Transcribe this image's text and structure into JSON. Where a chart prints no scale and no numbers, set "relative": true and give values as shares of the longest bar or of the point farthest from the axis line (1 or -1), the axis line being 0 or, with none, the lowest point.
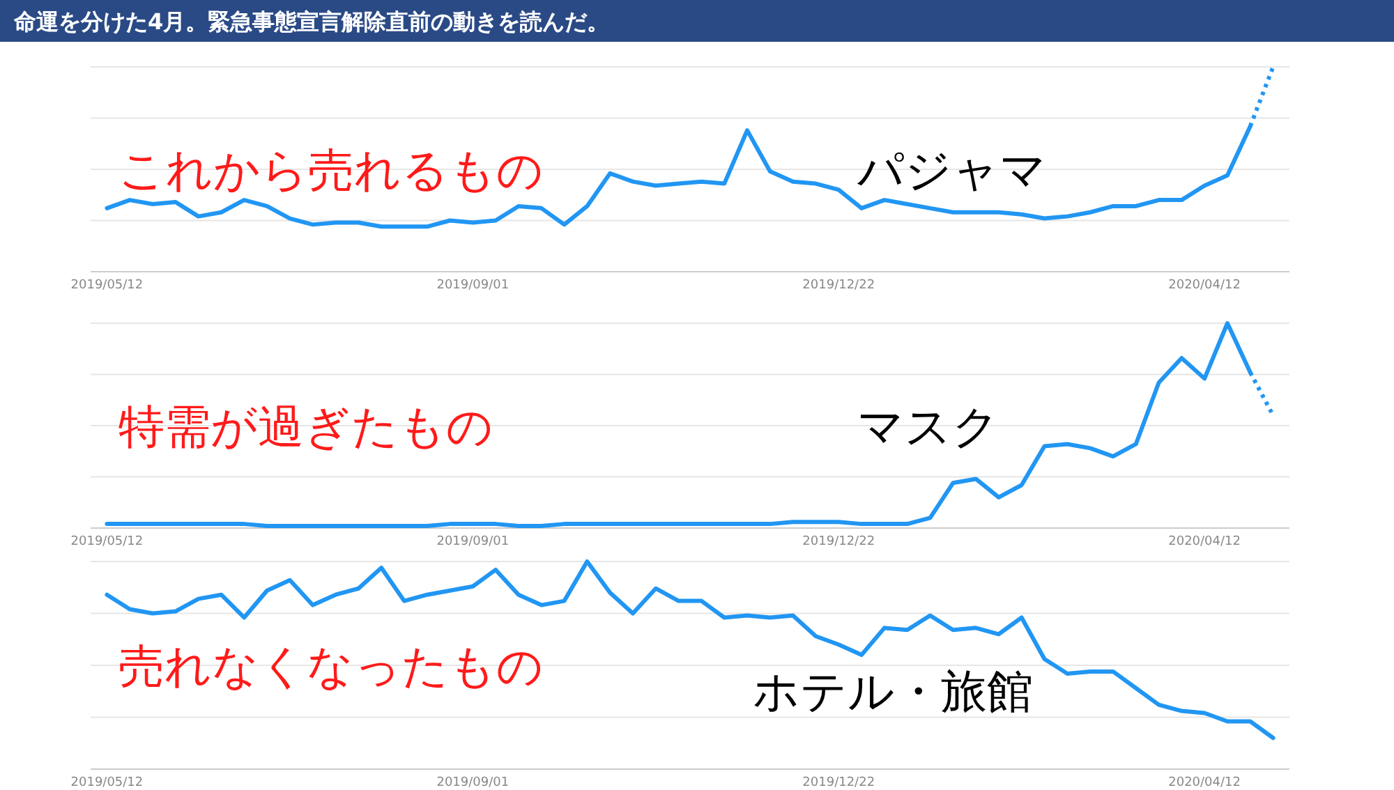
{
  "chart_data": [
    {
      "type": "line",
      "title": "命運を分けた4月。緊急事態宣言解除直前の動きを読んだ。",
      "relative": true,
      "grid": "y",
      "tick_labels": "x",
      "annotations": [
        "これから売れるもの",
        "パジャマ"
      ],
      "x": [
        "2019-05-12",
        "2019-05-19",
        "2019-05-26",
        "2019-06-02",
        "2019-06-09",
        "2019-06-16",
        "2019-06-23",
        "2019-06-30",
        "2019-07-07",
        "2019-07-14",
        "2019-07-21",
        "2019-07-28",
        "2019-08-04",
        "2019-08-11",
        "2019-08-18",
        "2019-08-25",
        "2019-09-01",
        "2019-09-08",
        "2019-09-15",
        "2019-09-22",
        "2019-09-29",
        "2019-10-06",
        "2019-10-13",
        "2019-10-20",
        "2019-10-27",
        "2019-11-03",
        "2019-11-10",
        "2019-11-17",
        "2019-11-24",
        "2019-12-01",
        "2019-12-08",
        "2019-12-15",
        "2019-12-22",
        "2019-12-29",
        "2020-01-05",
        "2020-01-12",
        "2020-01-19",
        "2020-01-26",
        "2020-02-02",
        "2020-02-09",
        "2020-02-16",
        "2020-02-23",
        "2020-03-01",
        "2020-03-08",
        "2020-03-15",
        "2020-03-22",
        "2020-03-29",
        "2020-04-05",
        "2020-04-12",
        "2020-04-19",
        "2020-04-26",
        "2020-05-03"
      ],
      "xlim": [
        "2019-05-07",
        "2020-05-08"
      ],
      "xticks": [
        {
          "value": "2019-05-12",
          "label": "2019/05/12"
        },
        {
          "value": "2019-09-01",
          "label": "2019/09/01"
        },
        {
          "value": "2019-12-22",
          "label": "2019/12/22"
        },
        {
          "value": "2020-04-12",
          "label": "2020/04/12"
        }
      ],
      "series": [
        {
          "color": "#2196f3",
          "line_style": "solid",
          "values": [
            0.31,
            0.35,
            0.33,
            0.34,
            0.27,
            0.29,
            0.35,
            0.32,
            0.26,
            0.23,
            0.24,
            0.24,
            0.22,
            0.22,
            0.22,
            0.25,
            0.24,
            0.25,
            0.32,
            0.31,
            0.23,
            0.32,
            0.48,
            0.44,
            0.42,
            0.43,
            0.44,
            0.43,
            0.69,
            0.49,
            0.44,
            0.43,
            0.4,
            0.31,
            0.35,
            0.33,
            0.31,
            0.29,
            0.29,
            0.29,
            0.28,
            0.26,
            0.27,
            0.29,
            0.32,
            0.32,
            0.35,
            0.35,
            0.42,
            0.47,
            0.71,
            null
          ]
        },
        {
          "color": "#2196f3",
          "line_style": "dotted",
          "values": [
            null,
            null,
            null,
            null,
            null,
            null,
            null,
            null,
            null,
            null,
            null,
            null,
            null,
            null,
            null,
            null,
            null,
            null,
            null,
            null,
            null,
            null,
            null,
            null,
            null,
            null,
            null,
            null,
            null,
            null,
            null,
            null,
            null,
            null,
            null,
            null,
            null,
            null,
            null,
            null,
            null,
            null,
            null,
            null,
            null,
            null,
            null,
            null,
            null,
            null,
            0.71,
            1.0
          ]
        }
      ]
    },
    {
      "type": "line",
      "relative": true,
      "grid": "y",
      "tick_labels": "x",
      "annotations": [
        "特需が過ぎたもの",
        "マスク"
      ],
      "x": [
        "2019-05-12",
        "2019-05-19",
        "2019-05-26",
        "2019-06-02",
        "2019-06-09",
        "2019-06-16",
        "2019-06-23",
        "2019-06-30",
        "2019-07-07",
        "2019-07-14",
        "2019-07-21",
        "2019-07-28",
        "2019-08-04",
        "2019-08-11",
        "2019-08-18",
        "2019-08-25",
        "2019-09-01",
        "2019-09-08",
        "2019-09-15",
        "2019-09-22",
        "2019-09-29",
        "2019-10-06",
        "2019-10-13",
        "2019-10-20",
        "2019-10-27",
        "2019-11-03",
        "2019-11-10",
        "2019-11-17",
        "2019-11-24",
        "2019-12-01",
        "2019-12-08",
        "2019-12-15",
        "2019-12-22",
        "2019-12-29",
        "2020-01-05",
        "2020-01-12",
        "2020-01-19",
        "2020-01-26",
        "2020-02-02",
        "2020-02-09",
        "2020-02-16",
        "2020-02-23",
        "2020-03-01",
        "2020-03-08",
        "2020-03-15",
        "2020-03-22",
        "2020-03-29",
        "2020-04-05",
        "2020-04-12",
        "2020-04-19",
        "2020-04-26",
        "2020-05-03"
      ],
      "xlim": [
        "2019-05-07",
        "2020-05-08"
      ],
      "xticks": [
        {
          "value": "2019-05-12",
          "label": "2019/05/12"
        },
        {
          "value": "2019-09-01",
          "label": "2019/09/01"
        },
        {
          "value": "2019-12-22",
          "label": "2019/12/22"
        },
        {
          "value": "2020-04-12",
          "label": "2020/04/12"
        }
      ],
      "series": [
        {
          "color": "#2196f3",
          "line_style": "solid",
          "values": [
            0.02,
            0.02,
            0.02,
            0.02,
            0.02,
            0.02,
            0.02,
            0.01,
            0.01,
            0.01,
            0.01,
            0.01,
            0.01,
            0.01,
            0.01,
            0.02,
            0.02,
            0.02,
            0.01,
            0.01,
            0.02,
            0.02,
            0.02,
            0.02,
            0.02,
            0.02,
            0.02,
            0.02,
            0.02,
            0.02,
            0.03,
            0.03,
            0.03,
            0.02,
            0.02,
            0.02,
            0.05,
            0.22,
            0.24,
            0.15,
            0.21,
            0.4,
            0.41,
            0.39,
            0.35,
            0.41,
            0.71,
            0.83,
            0.73,
            1.0,
            0.76,
            null
          ]
        },
        {
          "color": "#2196f3",
          "line_style": "dotted",
          "values": [
            null,
            null,
            null,
            null,
            null,
            null,
            null,
            null,
            null,
            null,
            null,
            null,
            null,
            null,
            null,
            null,
            null,
            null,
            null,
            null,
            null,
            null,
            null,
            null,
            null,
            null,
            null,
            null,
            null,
            null,
            null,
            null,
            null,
            null,
            null,
            null,
            null,
            null,
            null,
            null,
            null,
            null,
            null,
            null,
            null,
            null,
            null,
            null,
            null,
            null,
            0.76,
            0.55
          ]
        }
      ]
    },
    {
      "type": "line",
      "relative": true,
      "grid": "y",
      "tick_labels": "x",
      "annotations": [
        "売れなくなったもの",
        "ホテル・旅館"
      ],
      "x": [
        "2019-05-12",
        "2019-05-19",
        "2019-05-26",
        "2019-06-02",
        "2019-06-09",
        "2019-06-16",
        "2019-06-23",
        "2019-06-30",
        "2019-07-07",
        "2019-07-14",
        "2019-07-21",
        "2019-07-28",
        "2019-08-04",
        "2019-08-11",
        "2019-08-18",
        "2019-08-25",
        "2019-09-01",
        "2019-09-08",
        "2019-09-15",
        "2019-09-22",
        "2019-09-29",
        "2019-10-06",
        "2019-10-13",
        "2019-10-20",
        "2019-10-27",
        "2019-11-03",
        "2019-11-10",
        "2019-11-17",
        "2019-11-24",
        "2019-12-01",
        "2019-12-08",
        "2019-12-15",
        "2019-12-22",
        "2019-12-29",
        "2020-01-05",
        "2020-01-12",
        "2020-01-19",
        "2020-01-26",
        "2020-02-02",
        "2020-02-09",
        "2020-02-16",
        "2020-02-23",
        "2020-03-01",
        "2020-03-08",
        "2020-03-15",
        "2020-03-22",
        "2020-03-29",
        "2020-04-05",
        "2020-04-12",
        "2020-04-19",
        "2020-04-26",
        "2020-05-03"
      ],
      "xlim": [
        "2019-05-07",
        "2020-05-08"
      ],
      "xticks": [
        {
          "value": "2019-05-12",
          "label": "2019/05/12"
        },
        {
          "value": "2019-09-01",
          "label": "2019/09/01"
        },
        {
          "value": "2019-12-22",
          "label": "2019/12/22"
        },
        {
          "value": "2020-04-12",
          "label": "2020/04/12"
        }
      ],
      "series": [
        {
          "color": "#2196f3",
          "line_style": "solid",
          "values": [
            0.84,
            0.77,
            0.75,
            0.76,
            0.82,
            0.84,
            0.73,
            0.86,
            0.91,
            0.79,
            0.84,
            0.87,
            0.97,
            0.81,
            0.84,
            0.86,
            0.88,
            0.96,
            0.84,
            0.79,
            0.81,
            1.0,
            0.85,
            0.75,
            0.87,
            0.81,
            0.81,
            0.73,
            0.74,
            0.73,
            0.74,
            0.64,
            0.6,
            0.55,
            0.68,
            0.67,
            0.74,
            0.67,
            0.68,
            0.65,
            0.73,
            0.53,
            0.46,
            0.47,
            0.47,
            0.39,
            0.31,
            0.28,
            0.27,
            0.23,
            0.23,
            0.15
          ]
        }
      ]
    }
  ]
}
